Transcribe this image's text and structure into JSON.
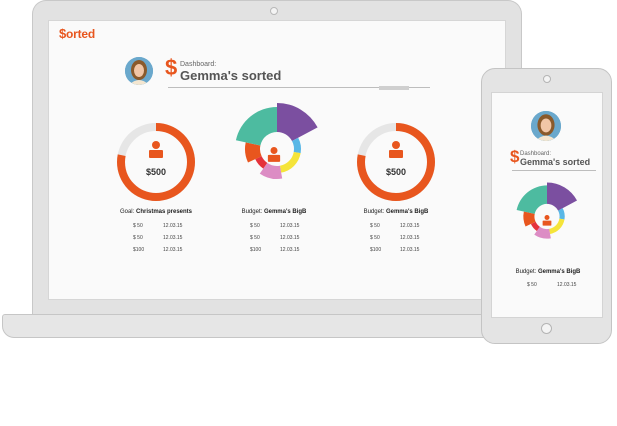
{
  "brand": {
    "logo_symbol": "$",
    "logo_text": "orted",
    "color": "#e8561e"
  },
  "desktop": {
    "dashboard": {
      "symbol": "$",
      "caption": "Dashboard:",
      "name": "Gemma's sorted"
    },
    "goal_card": {
      "prefix": "Goal:",
      "title": "Christmas presents",
      "amount": "$500",
      "progress": 0.78,
      "rows": [
        {
          "amount": "$ 50",
          "date": "12.03.15"
        },
        {
          "amount": "$ 50",
          "date": "12.03.15"
        },
        {
          "amount": "$100",
          "date": "12.03.15"
        }
      ]
    },
    "budget_chart_card": {
      "prefix": "Budget:",
      "title": "Gemma's BigB",
      "rows": [
        {
          "amount": "$ 50",
          "date": "12.03.15"
        },
        {
          "amount": "$ 50",
          "date": "12.03.15"
        },
        {
          "amount": "$100",
          "date": "12.03.15"
        }
      ]
    },
    "budget_card": {
      "prefix": "Budget:",
      "title": "Gemma's BigB",
      "amount": "$500",
      "progress": 0.78,
      "rows": [
        {
          "amount": "$ 50",
          "date": "12.03.15"
        },
        {
          "amount": "$ 50",
          "date": "12.03.15"
        },
        {
          "amount": "$100",
          "date": "12.03.15"
        }
      ]
    }
  },
  "mobile": {
    "dashboard": {
      "symbol": "$",
      "caption": "Dashboard:",
      "name": "Gemma's sorted"
    },
    "budget_card": {
      "prefix": "Budget:",
      "title": "Gemma's BigB",
      "rows": [
        {
          "amount": "$ 50",
          "date": "12.03.15"
        }
      ]
    }
  },
  "colors": {
    "accent": "#e8561e",
    "ring_track": "#e6e6e6",
    "purple": "#7b4fa0",
    "teal": "#4dbba0",
    "orange": "#e8561e",
    "red": "#e5323b",
    "pink": "#dc8cc4",
    "yellow": "#f5e43a",
    "blue": "#59b7e6"
  }
}
